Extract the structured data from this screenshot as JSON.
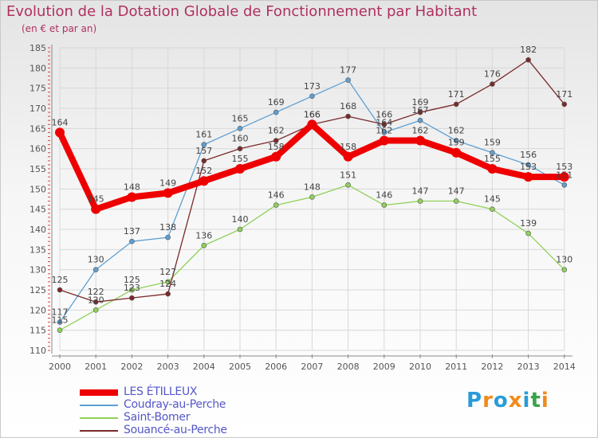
{
  "title": "Evolution de la Dotation Globale de Fonctionnement par Habitant",
  "subtitle": "(en € et par an)",
  "brand": {
    "letters": [
      "P",
      "r",
      "o",
      "x",
      "i",
      "t",
      "i"
    ],
    "colors": [
      "#2a9bd8",
      "#f08a1c",
      "#2a9bd8",
      "#f08a1c",
      "#2a9bd8",
      "#3aa34a",
      "#f08a1c"
    ]
  },
  "colors": {
    "title": "#b03060",
    "axis_text": "#555555",
    "grid": "#d8d8d8",
    "label": "#444444"
  },
  "chart_data": {
    "type": "line",
    "title": "Evolution de la Dotation Globale de Fonctionnement par Habitant",
    "subtitle": "(en € et par an)",
    "x": [
      "2000",
      "2001",
      "2002",
      "2003",
      "2004",
      "2005",
      "2006",
      "2007",
      "2008",
      "2009",
      "2010",
      "2011",
      "2012",
      "2013",
      "2014"
    ],
    "ylim": [
      110,
      185
    ],
    "yticks": [
      110,
      115,
      120,
      125,
      130,
      135,
      140,
      145,
      150,
      155,
      160,
      165,
      170,
      175,
      180,
      185
    ],
    "grid": true,
    "series": [
      {
        "name": "LES ÉTILLEUX",
        "color": "#ee0000",
        "thick": true,
        "values": [
          164,
          145,
          148,
          149,
          152,
          155,
          158,
          166,
          158,
          162,
          162,
          159,
          155,
          153,
          153
        ],
        "labels": [
          "164",
          "145",
          "148",
          "149",
          "152",
          "155",
          "158",
          "166",
          "158",
          "162",
          "162",
          "159",
          "155",
          "153",
          "153"
        ]
      },
      {
        "name": "Coudray-au-Perche",
        "color": "#5e9fd3",
        "thick": false,
        "values": [
          117,
          130,
          137,
          138,
          161,
          165,
          169,
          173,
          177,
          164,
          167,
          162,
          159,
          156,
          151
        ],
        "labels": [
          "117",
          "130",
          "137",
          "138",
          "161",
          "165",
          "169",
          "173",
          "177",
          "164",
          "167",
          "162",
          "159",
          "156",
          "151"
        ]
      },
      {
        "name": "Saint-Bomer",
        "color": "#8fd15a",
        "thick": false,
        "values": [
          115,
          120,
          125,
          127,
          136,
          140,
          146,
          148,
          151,
          146,
          147,
          147,
          145,
          139,
          130
        ],
        "labels": [
          "115",
          "120",
          "125",
          "127",
          "136",
          "140",
          "146",
          "148",
          "151",
          "146",
          "147",
          "147",
          "145",
          "139",
          "130"
        ]
      },
      {
        "name": "Souancé-au-Perche",
        "color": "#7a2a2a",
        "thick": false,
        "values": [
          125,
          122,
          123,
          124,
          157,
          160,
          162,
          166,
          168,
          166,
          169,
          171,
          176,
          182,
          171
        ],
        "labels": [
          "125",
          "122",
          "123",
          "124",
          "157",
          "160",
          "162",
          "166",
          "168",
          "166",
          "169",
          "171",
          "176",
          "182",
          "171"
        ]
      }
    ],
    "legend_position": "bottom-left"
  }
}
